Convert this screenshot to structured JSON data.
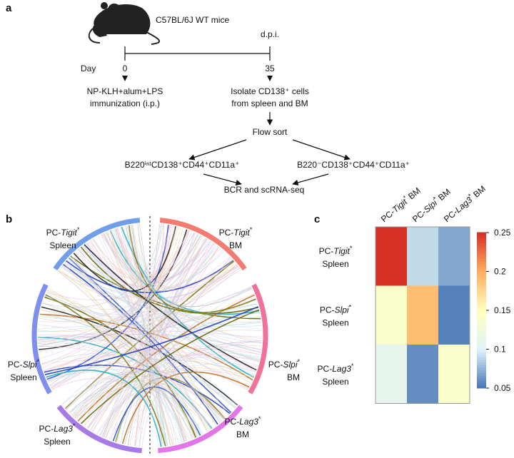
{
  "panel_a": {
    "label": "a",
    "strain": "C57BL/6J WT mice",
    "dpi": "d.p.i.",
    "day": "Day",
    "day0": "0",
    "day35": "35",
    "immunization": [
      "NP-KLH+alum+LPS",
      "immunization (i.p.)"
    ],
    "isolate": [
      "Isolate CD138⁺ cells",
      "from spleen and BM"
    ],
    "sort": "Flow sort",
    "populations": [
      "B220ⁱⁿᵗCD138⁺CD44⁺CD11a⁺",
      "B220⁻CD138⁺CD44⁺CD11a⁺"
    ],
    "sequencing": "BCR and scRNA-seq"
  },
  "panel_b": {
    "label": "b",
    "groups": [
      {
        "prefix": "PC-",
        "gene": "Tigit",
        "mark": "*",
        "tissue": "BM",
        "color": "#f27b72"
      },
      {
        "prefix": "PC-",
        "gene": "Slpi",
        "mark": "*",
        "tissue": "BM",
        "color": "#f0719a"
      },
      {
        "prefix": "PC-",
        "gene": "Lag3",
        "mark": "*",
        "tissue": "BM",
        "color": "#e276e6"
      },
      {
        "prefix": "PC-",
        "gene": "Lag3",
        "mark": "*",
        "tissue": "Spleen",
        "color": "#a77ae8"
      },
      {
        "prefix": "PC-",
        "gene": "Slpi",
        "mark": "*",
        "tissue": "Spleen",
        "color": "#7f8ff0"
      },
      {
        "prefix": "PC-",
        "gene": "Tigit",
        "mark": "*",
        "tissue": "Spleen",
        "color": "#6f9fe8"
      }
    ]
  },
  "panel_c": {
    "label": "c",
    "rows": [
      {
        "prefix": "PC-",
        "gene": "Tigit",
        "mark": "*",
        "tissue": "Spleen"
      },
      {
        "prefix": "PC-",
        "gene": "Slpi",
        "mark": "*",
        "tissue": "Spleen"
      },
      {
        "prefix": "PC-",
        "gene": "Lag3",
        "mark": "*",
        "tissue": "Spleen"
      }
    ],
    "columns": [
      {
        "prefix": "PC-",
        "gene": "Tigit",
        "mark": "*",
        "tissue": "BM"
      },
      {
        "prefix": "PC-",
        "gene": "Slpi",
        "mark": "*",
        "tissue": "BM"
      },
      {
        "prefix": "PC-",
        "gene": "Lag3",
        "mark": "*",
        "tissue": "BM"
      }
    ],
    "values": [
      [
        0.25,
        0.09,
        0.07
      ],
      [
        0.14,
        0.19,
        0.055
      ],
      [
        0.11,
        0.06,
        0.14
      ]
    ],
    "colorscale": [
      "#4575b4",
      "#e0f3f8",
      "#ffffbf",
      "#fdae61",
      "#d73027"
    ],
    "lim": [
      0.05,
      0.25
    ],
    "ticks": [
      0.05,
      0.1,
      0.15,
      0.2,
      0.25
    ]
  }
}
